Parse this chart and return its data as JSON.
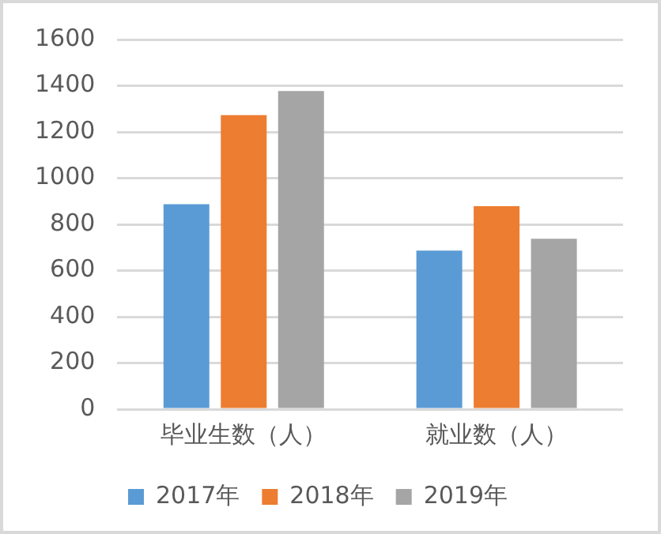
{
  "chart_data": {
    "type": "bar",
    "categories": [
      "毕业生数（人）",
      "就业数（人）"
    ],
    "series": [
      {
        "name": "2017年",
        "color": "#5b9bd5",
        "values": [
          887,
          686
        ]
      },
      {
        "name": "2018年",
        "color": "#ed7d31",
        "values": [
          1273,
          879
        ]
      },
      {
        "name": "2019年",
        "color": "#a5a5a5",
        "values": [
          1377,
          738
        ]
      }
    ],
    "ylim": [
      0,
      1600
    ],
    "yticks": [
      0,
      200,
      400,
      600,
      800,
      1000,
      1200,
      1400,
      1600
    ],
    "grid": "y",
    "legend": "bottom"
  }
}
